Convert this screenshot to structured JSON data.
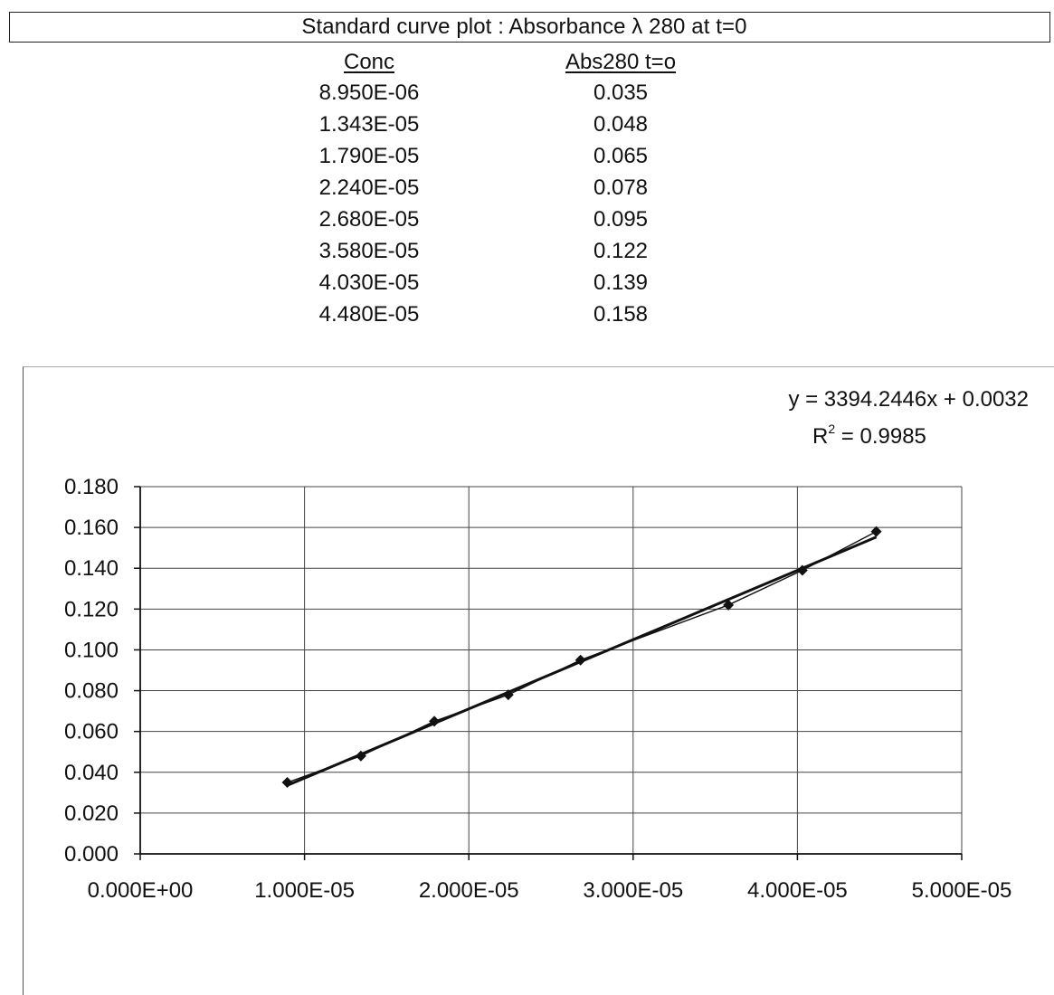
{
  "header": {
    "title": "Standard curve plot : Absorbance λ 280 at t=0"
  },
  "table": {
    "columns": [
      "Conc",
      "Abs280 t=o"
    ],
    "rows": [
      [
        "8.950E-06",
        "0.035"
      ],
      [
        "1.343E-05",
        "0.048"
      ],
      [
        "1.790E-05",
        "0.065"
      ],
      [
        "2.240E-05",
        "0.078"
      ],
      [
        "2.680E-05",
        "0.095"
      ],
      [
        "3.580E-05",
        "0.122"
      ],
      [
        "4.030E-05",
        "0.139"
      ],
      [
        "4.480E-05",
        "0.158"
      ]
    ]
  },
  "chart_data": {
    "type": "scatter",
    "title": "",
    "xlabel": "",
    "ylabel": "",
    "x": [
      8.95e-06,
      1.343e-05,
      1.79e-05,
      2.24e-05,
      2.68e-05,
      3.58e-05,
      4.03e-05,
      4.48e-05
    ],
    "y": [
      0.035,
      0.048,
      0.065,
      0.078,
      0.095,
      0.122,
      0.139,
      0.158
    ],
    "series_style": "line-with-diamond-markers",
    "trendline": {
      "type": "linear",
      "slope": 3394.2446,
      "intercept": 0.0032,
      "equation": "y = 3394.2446x + 0.0032",
      "r2_label": "R",
      "r2_sup": "2",
      "r2_value": " = 0.9985"
    },
    "xlim": [
      0,
      5e-05
    ],
    "ylim": [
      0,
      0.18
    ],
    "x_ticks": [
      "0.000E+00",
      "1.000E-05",
      "2.000E-05",
      "3.000E-05",
      "4.000E-05",
      "5.000E-05"
    ],
    "y_ticks": [
      "0.000",
      "0.020",
      "0.040",
      "0.060",
      "0.080",
      "0.100",
      "0.120",
      "0.140",
      "0.160",
      "0.180"
    ],
    "grid": true,
    "legend": "none",
    "colors": {
      "series": "#111111",
      "grid": "#444444",
      "background": "#ffffff"
    }
  }
}
